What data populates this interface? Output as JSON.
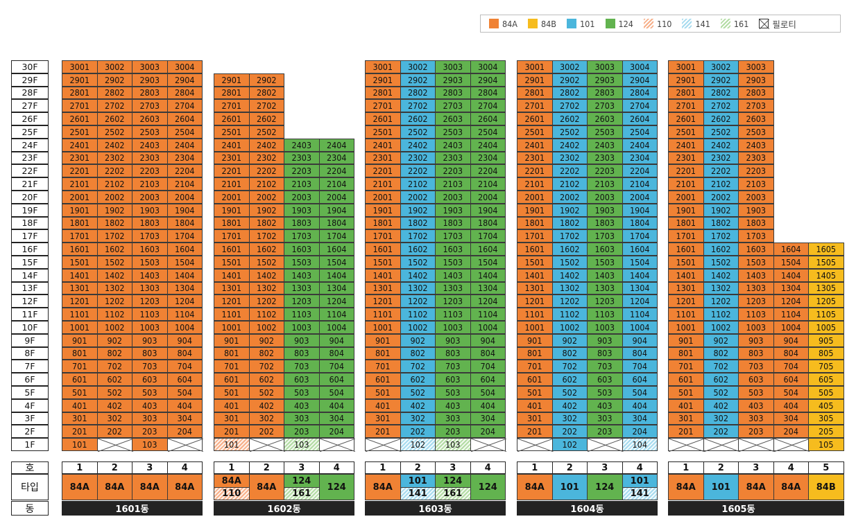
{
  "legend": {
    "items": [
      {
        "label": "84A",
        "color": "#f08234",
        "pattern": "solid"
      },
      {
        "label": "84B",
        "color": "#f6bc1e",
        "pattern": "solid"
      },
      {
        "label": "101",
        "color": "#4bb6dc",
        "pattern": "solid"
      },
      {
        "label": "124",
        "color": "#62b34f",
        "pattern": "solid"
      },
      {
        "label": "110",
        "color": "#fbd3bc",
        "pattern": "hatch"
      },
      {
        "label": "141",
        "color": "#cfeaf6",
        "pattern": "hatch"
      },
      {
        "label": "161",
        "color": "#d4ecc9",
        "pattern": "hatch"
      },
      {
        "label": "필로티",
        "color": "#ffffff",
        "pattern": "cross"
      }
    ]
  },
  "floors": [
    "30F",
    "29F",
    "28F",
    "27F",
    "26F",
    "25F",
    "24F",
    "23F",
    "22F",
    "21F",
    "20F",
    "19F",
    "18F",
    "17F",
    "16F",
    "15F",
    "14F",
    "13F",
    "12F",
    "11F",
    "10F",
    "9F",
    "8F",
    "7F",
    "6F",
    "5F",
    "4F",
    "3F",
    "2F",
    "1F"
  ],
  "row_labels": {
    "ho": "호",
    "type": "타입",
    "dong": "동"
  },
  "colors": {
    "84A": "#f08234",
    "84B": "#f6bc1e",
    "101": "#4bb6dc",
    "124": "#62b34f",
    "110": "#fbe0d0",
    "141": "#dcf0f8",
    "161": "#dcefd4",
    "piloti": "#ffffff"
  },
  "buildings": [
    {
      "name": "1601동",
      "lines": [
        "1",
        "2",
        "3",
        "4"
      ],
      "types": [
        [
          "84A"
        ],
        [
          "84A"
        ],
        [
          "84A"
        ],
        [
          "84A"
        ]
      ],
      "columns": [
        {
          "line": 1,
          "top": 30,
          "upper": "84A",
          "first": {
            "label": "101",
            "type": "84A"
          }
        },
        {
          "line": 2,
          "top": 30,
          "upper": "84A",
          "first": {
            "label": "",
            "type": "piloti"
          }
        },
        {
          "line": 3,
          "top": 30,
          "upper": "84A",
          "first": {
            "label": "103",
            "type": "84A"
          }
        },
        {
          "line": 4,
          "top": 30,
          "upper": "84A",
          "first": {
            "label": "",
            "type": "piloti"
          }
        }
      ]
    },
    {
      "name": "1602동",
      "lines": [
        "1",
        "2",
        "3",
        "4"
      ],
      "types": [
        [
          "84A",
          "110"
        ],
        [
          "84A"
        ],
        [
          "124",
          "161"
        ],
        [
          "124"
        ]
      ],
      "columns": [
        {
          "line": 1,
          "top": 29,
          "upper": "84A",
          "first": {
            "label": "101",
            "type": "110"
          }
        },
        {
          "line": 2,
          "top": 29,
          "upper": "84A",
          "first": {
            "label": "",
            "type": "piloti"
          }
        },
        {
          "line": 3,
          "top": 24,
          "upper": "124",
          "first": {
            "label": "103",
            "type": "161"
          }
        },
        {
          "line": 4,
          "top": 24,
          "upper": "124",
          "first": {
            "label": "",
            "type": "piloti"
          }
        }
      ]
    },
    {
      "name": "1603동",
      "lines": [
        "1",
        "2",
        "3",
        "4"
      ],
      "types": [
        [
          "84A"
        ],
        [
          "101",
          "141"
        ],
        [
          "124",
          "161"
        ],
        [
          "124"
        ]
      ],
      "columns": [
        {
          "line": 1,
          "top": 30,
          "upper": "84A",
          "first": {
            "label": "",
            "type": "piloti"
          }
        },
        {
          "line": 2,
          "top": 30,
          "upper": "101",
          "first": {
            "label": "102",
            "type": "141"
          }
        },
        {
          "line": 3,
          "top": 30,
          "upper": "124",
          "first": {
            "label": "103",
            "type": "161"
          }
        },
        {
          "line": 4,
          "top": 30,
          "upper": "124",
          "first": {
            "label": "",
            "type": "piloti"
          }
        }
      ]
    },
    {
      "name": "1604동",
      "lines": [
        "1",
        "2",
        "3",
        "4"
      ],
      "types": [
        [
          "84A"
        ],
        [
          "101"
        ],
        [
          "124"
        ],
        [
          "101",
          "141"
        ]
      ],
      "columns": [
        {
          "line": 1,
          "top": 30,
          "upper": "84A",
          "first": {
            "label": "",
            "type": "piloti"
          }
        },
        {
          "line": 2,
          "top": 30,
          "upper": "101",
          "first": {
            "label": "102",
            "type": "101"
          }
        },
        {
          "line": 3,
          "top": 30,
          "upper": "124",
          "first": {
            "label": "",
            "type": "piloti"
          }
        },
        {
          "line": 4,
          "top": 30,
          "upper": "101",
          "first": {
            "label": "104",
            "type": "141"
          }
        }
      ]
    },
    {
      "name": "1605동",
      "lines": [
        "1",
        "2",
        "3",
        "4",
        "5"
      ],
      "types": [
        [
          "84A"
        ],
        [
          "101"
        ],
        [
          "84A"
        ],
        [
          "84A"
        ],
        [
          "84B"
        ]
      ],
      "columns": [
        {
          "line": 1,
          "top": 30,
          "upper": "84A",
          "first": {
            "label": "",
            "type": "piloti"
          }
        },
        {
          "line": 2,
          "top": 30,
          "upper": "101",
          "first": {
            "label": "",
            "type": "piloti"
          }
        },
        {
          "line": 3,
          "top": 30,
          "upper": "84A",
          "first": {
            "label": "",
            "type": "piloti"
          }
        },
        {
          "line": 4,
          "top": 16,
          "upper": "84A",
          "first": {
            "label": "",
            "type": "piloti"
          }
        },
        {
          "line": 5,
          "top": 16,
          "upper": "84B",
          "first": {
            "label": "105",
            "type": "84B"
          }
        }
      ]
    }
  ]
}
